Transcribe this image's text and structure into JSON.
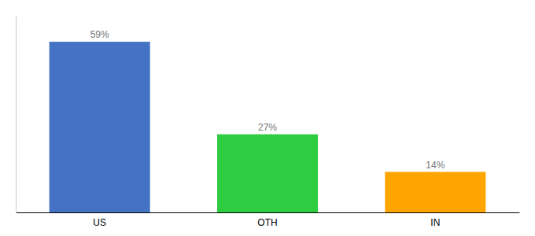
{
  "chart_data": {
    "type": "bar",
    "categories": [
      "US",
      "OTH",
      "IN"
    ],
    "values": [
      59,
      27,
      14
    ],
    "value_labels": [
      "59%",
      "27%",
      "14%"
    ],
    "colors": [
      "#4472C4",
      "#2ECC40",
      "#FFA500"
    ],
    "ylim": [
      0,
      68
    ],
    "data_labels": true,
    "tick_labels": "x"
  }
}
